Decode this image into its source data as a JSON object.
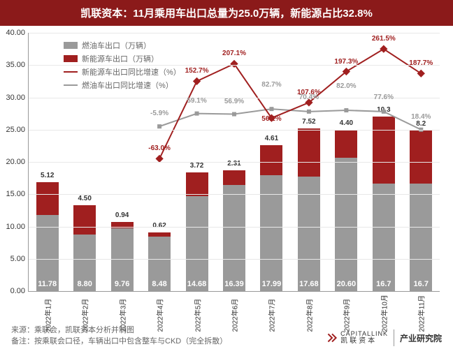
{
  "title": "凯联资本：11月乘用车出口总量为25.0万辆，新能源占比32.8%",
  "chart": {
    "type": "bar+line",
    "background_color": "#ffffff",
    "title_bg": "#8b1a1a",
    "title_color": "#ffffff",
    "ylim": [
      0,
      40
    ],
    "ytick_step": 5,
    "yticks": [
      "0.00",
      "5.00",
      "10.00",
      "15.00",
      "20.00",
      "25.00",
      "30.00",
      "35.00",
      "40.00"
    ],
    "grid_color": "#e8e8e8",
    "categories": [
      "2022年1月",
      "2022年2月",
      "2022年3月",
      "2022年4月",
      "2022年5月",
      "2022年6月",
      "2022年7月",
      "2022年8月",
      "2022年9月",
      "2022年10月",
      "2022年11月"
    ],
    "series": {
      "ice": {
        "name": "燃油车出口（万辆）",
        "color": "#9a9a9a",
        "values": [
          11.78,
          8.8,
          9.76,
          8.48,
          14.68,
          16.39,
          17.99,
          17.68,
          20.6,
          16.7,
          16.7
        ],
        "labels": [
          "11.78",
          "8.80",
          "9.76",
          "8.48",
          "14.68",
          "16.39",
          "17.99",
          "17.68",
          "20.60",
          "16.7",
          "16.7"
        ]
      },
      "nev": {
        "name": "新能源车出口（万辆）",
        "color": "#a01f1f",
        "values": [
          5.12,
          4.5,
          0.94,
          0.62,
          3.72,
          2.31,
          4.61,
          7.52,
          4.4,
          10.3,
          8.2
        ],
        "labels": [
          "5.12",
          "4.50",
          "0.94",
          "0.62",
          "3.72",
          "2.31",
          "4.61",
          "7.52",
          "4.40",
          "10.3",
          "8.2"
        ]
      },
      "nev_growth": {
        "name": "新能源车出口同比增速（%）",
        "color": "#a01f1f",
        "line_yvals": [
          null,
          null,
          null,
          20.5,
          32.5,
          35.2,
          26.8,
          29.2,
          34.0,
          37.5,
          33.7
        ],
        "labels": [
          null,
          null,
          null,
          "-63.0%",
          "152.7%",
          "207.1%",
          "56.1%",
          "107.6%",
          "197.3%",
          "261.5%",
          "187.7%"
        ],
        "label_offsets": [
          null,
          null,
          null,
          0,
          0,
          0,
          16,
          0,
          0,
          0,
          0
        ]
      },
      "ice_growth": {
        "name": "燃油车出口同比增速（%）",
        "color": "#9a9a9a",
        "line_yvals": [
          null,
          null,
          null,
          25.5,
          27.5,
          27.4,
          28.2,
          27.8,
          28.0,
          27.8,
          25.0
        ],
        "labels": [
          null,
          null,
          null,
          "-5.9%",
          "59.1%",
          "56.9%",
          "82.7%",
          "70.4%",
          "82.0%",
          "77.6%",
          "18.4%"
        ],
        "label_offsets": [
          null,
          null,
          null,
          -4,
          -4,
          -4,
          -20,
          -6,
          -20,
          -6,
          -4
        ]
      }
    },
    "legend_items": [
      {
        "type": "box",
        "color": "#9a9a9a",
        "key": "chart.series.ice.name"
      },
      {
        "type": "box",
        "color": "#a01f1f",
        "key": "chart.series.nev.name"
      },
      {
        "type": "line",
        "color": "#a01f1f",
        "key": "chart.series.nev_growth.name"
      },
      {
        "type": "line",
        "color": "#9a9a9a",
        "key": "chart.series.ice_growth.name"
      }
    ]
  },
  "footer": {
    "source_label": "来源：",
    "source_text": "乘联会，凯联资本分析并制图",
    "note_label": "备注：",
    "note_text": "按乘联会口径，车辆出口中包含整车与CKD（完全拆散）",
    "logo_en": "CAPITALLINK",
    "logo_cn": "凯联资本",
    "right_text": "产业研究院"
  }
}
